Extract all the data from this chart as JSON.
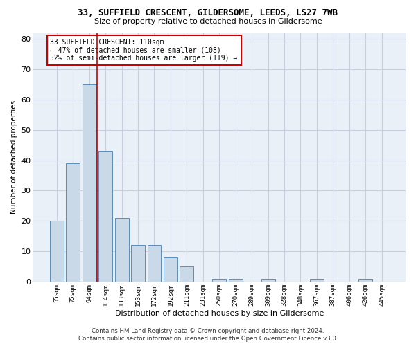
{
  "title1": "33, SUFFIELD CRESCENT, GILDERSOME, LEEDS, LS27 7WB",
  "title2": "Size of property relative to detached houses in Gildersome",
  "xlabel": "Distribution of detached houses by size in Gildersome",
  "ylabel": "Number of detached properties",
  "footer1": "Contains HM Land Registry data © Crown copyright and database right 2024.",
  "footer2": "Contains public sector information licensed under the Open Government Licence v3.0.",
  "annotation_title": "33 SUFFIELD CRESCENT: 110sqm",
  "annotation_line1": "← 47% of detached houses are smaller (108)",
  "annotation_line2": "52% of semi-detached houses are larger (119) →",
  "values": [
    20,
    39,
    65,
    43,
    21,
    12,
    12,
    8,
    5,
    0,
    1,
    1,
    0,
    1,
    0,
    0,
    1,
    0,
    0,
    1,
    0
  ],
  "categories": [
    "55sqm",
    "75sqm",
    "94sqm",
    "114sqm",
    "133sqm",
    "153sqm",
    "172sqm",
    "192sqm",
    "211sqm",
    "231sqm",
    "250sqm",
    "270sqm",
    "289sqm",
    "309sqm",
    "328sqm",
    "348sqm",
    "367sqm",
    "387sqm",
    "406sqm",
    "426sqm",
    "445sqm"
  ],
  "bar_color": "#c9d9e8",
  "bar_edge_color": "#5b8db8",
  "ref_line_color": "#cc0000",
  "ref_line_x": 2.5,
  "ylim": [
    0,
    82
  ],
  "yticks": [
    0,
    10,
    20,
    30,
    40,
    50,
    60,
    70,
    80
  ],
  "grid_color": "#c8d0e0",
  "bg_color": "#eaf0f8",
  "bar_width": 0.85
}
